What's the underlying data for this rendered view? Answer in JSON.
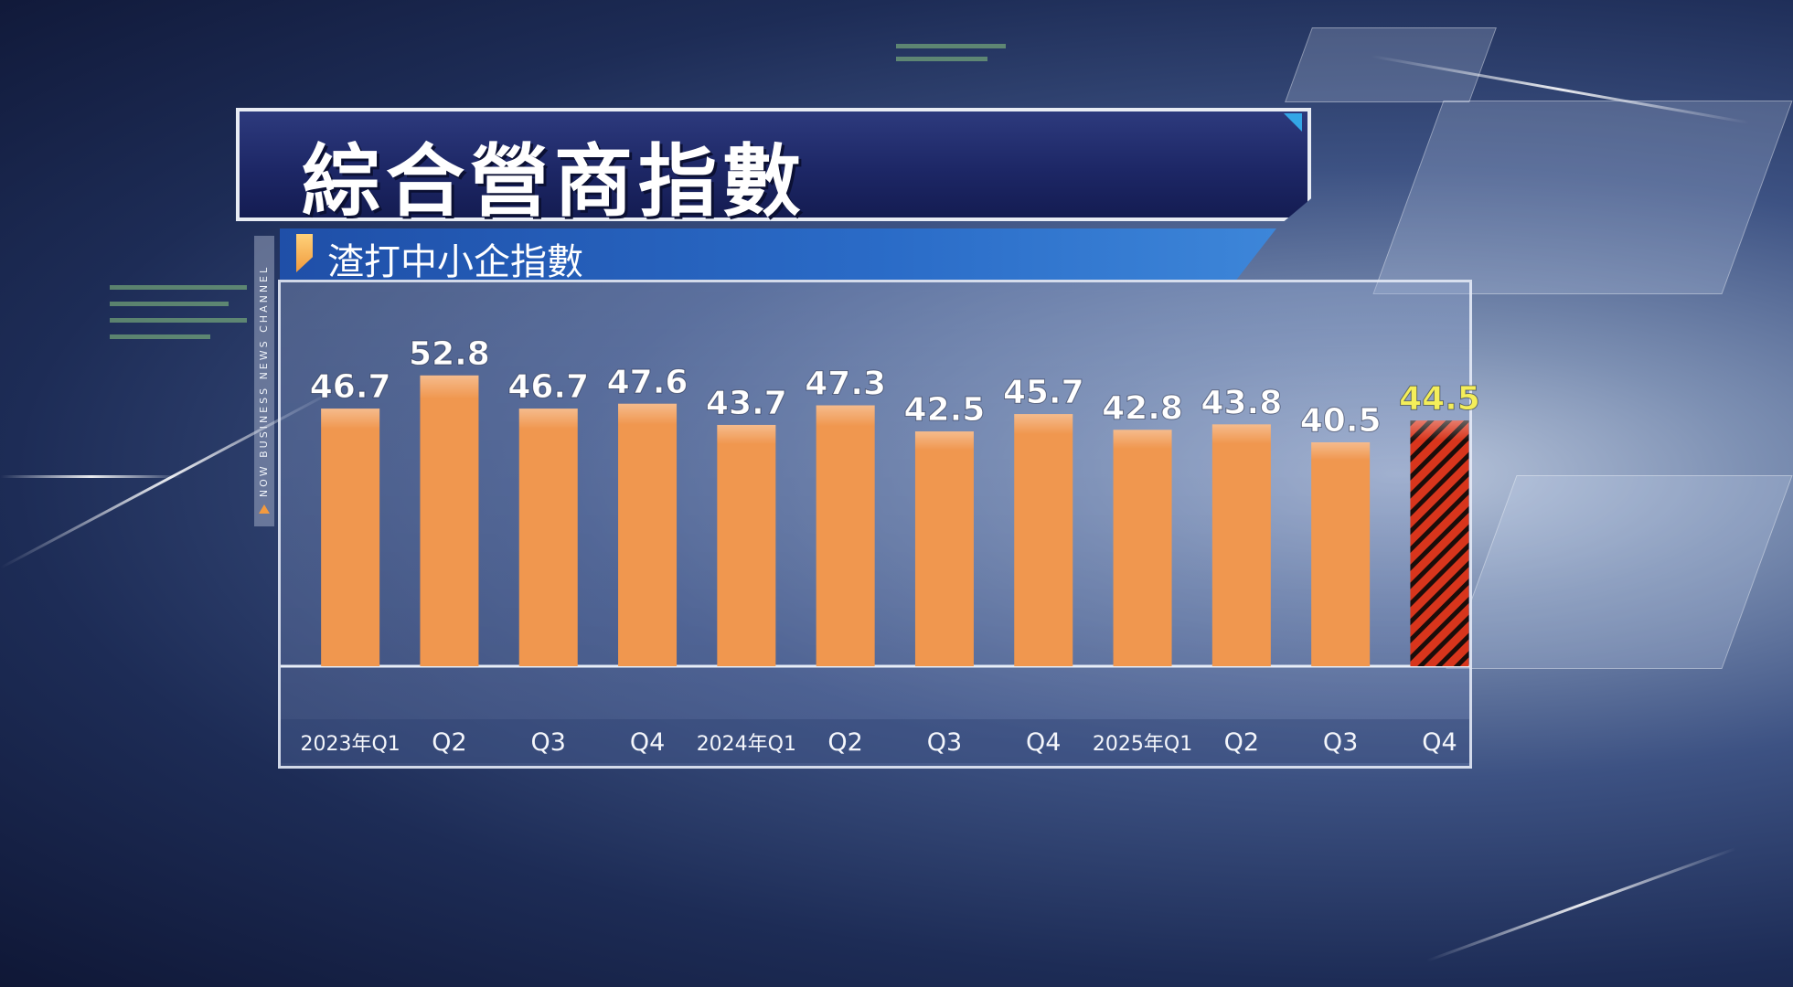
{
  "title": "綜合營商指數",
  "subtitle": "渣打中小企指數",
  "channel_tag": "NOW BUSINESS NEWS CHANNEL",
  "colors": {
    "bar": "#f0974f",
    "bar_highlight": "#d8351c",
    "bar_stripe": "#1a0d0a",
    "label": "#ffffff",
    "label_highlight": "#f4ee5a",
    "title_bg": "#1d2766",
    "subtitle_bg": "#2a6bc7"
  },
  "chart_data": {
    "type": "bar",
    "title": "渣打中小企指數",
    "xlabel": "",
    "ylabel": "",
    "categories": [
      "2023年Q1",
      "Q2",
      "Q3",
      "Q4",
      "2024年Q1",
      "Q2",
      "Q3",
      "Q4",
      "2025年Q1",
      "Q2",
      "Q3",
      "Q4"
    ],
    "values": [
      46.7,
      52.8,
      46.7,
      47.6,
      43.7,
      47.3,
      42.5,
      45.7,
      42.8,
      43.8,
      40.5,
      44.5
    ],
    "value_labels": [
      "46.7",
      "52.8",
      "46.7",
      "47.6",
      "43.7",
      "47.3",
      "42.5",
      "45.7",
      "42.8",
      "43.8",
      "40.5",
      "44.5"
    ],
    "highlight_index": 11,
    "grid": false,
    "legend": "none"
  }
}
